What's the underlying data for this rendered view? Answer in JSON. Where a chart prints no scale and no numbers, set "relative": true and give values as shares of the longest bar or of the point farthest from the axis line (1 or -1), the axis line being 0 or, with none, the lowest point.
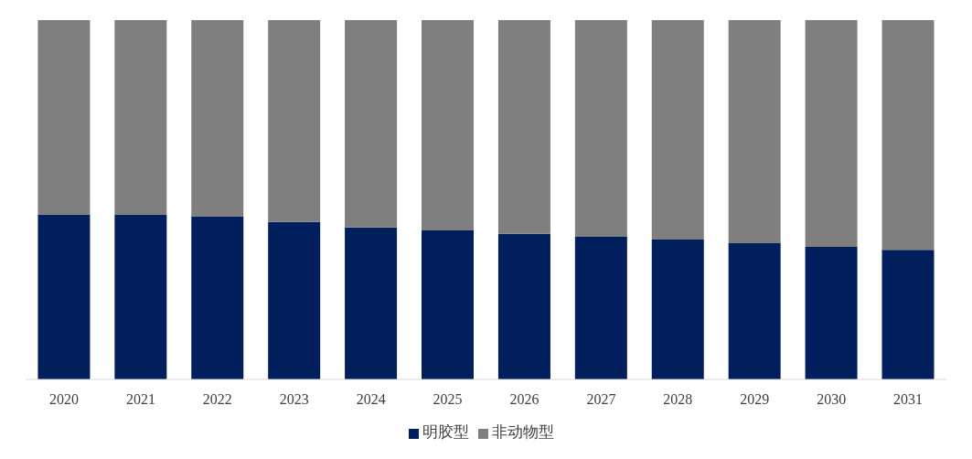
{
  "chart_data": {
    "type": "bar",
    "stacked": true,
    "relative": true,
    "categories": [
      "2020",
      "2021",
      "2022",
      "2023",
      "2024",
      "2025",
      "2026",
      "2027",
      "2028",
      "2029",
      "2030",
      "2031"
    ],
    "series": [
      {
        "name": "明胶型",
        "color": "#001f5c",
        "values": [
          0.459,
          0.459,
          0.454,
          0.438,
          0.423,
          0.415,
          0.405,
          0.397,
          0.389,
          0.379,
          0.369,
          0.361
        ]
      },
      {
        "name": "非动物型",
        "color": "#7f7f7f",
        "values": [
          0.541,
          0.541,
          0.546,
          0.562,
          0.577,
          0.585,
          0.595,
          0.603,
          0.611,
          0.621,
          0.631,
          0.639
        ]
      }
    ],
    "legend": "bottom",
    "grid": false
  }
}
